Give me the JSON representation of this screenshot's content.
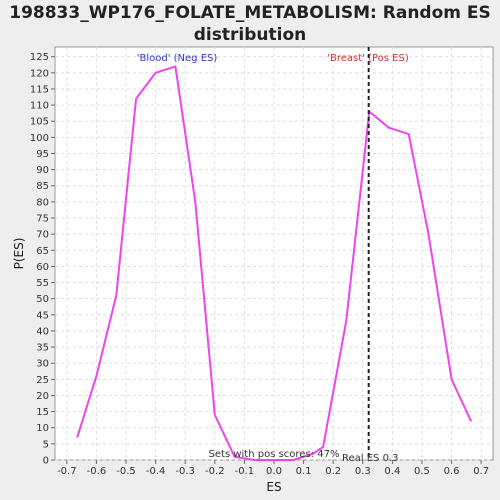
{
  "chart_data": {
    "type": "line",
    "title_line1": "198833_WP176_FOLATE_METABOLISM: Random ES",
    "title_line2": "distribution",
    "xlabel": "ES",
    "ylabel": "P(ES)",
    "xlim": [
      -0.74,
      0.74
    ],
    "ylim": [
      0,
      128
    ],
    "x_ticks": [
      -0.7,
      -0.6,
      -0.5,
      -0.4,
      -0.3,
      -0.2,
      -0.1,
      0.0,
      0.1,
      0.2,
      0.3,
      0.4,
      0.5,
      0.6,
      0.7
    ],
    "x_tick_labels": [
      "-0.7",
      "-0.6",
      "-0.5",
      "-0.4",
      "-0.3",
      "-0.2",
      "-0.1",
      "0.0",
      "0.1",
      "0.2",
      "0.3",
      "0.4",
      "0.5",
      "0.6",
      "0.7"
    ],
    "y_ticks": [
      0,
      5,
      10,
      15,
      20,
      25,
      30,
      35,
      40,
      45,
      50,
      55,
      60,
      65,
      70,
      75,
      80,
      85,
      90,
      95,
      100,
      105,
      110,
      115,
      120,
      125
    ],
    "grid": true,
    "series": [
      {
        "color": "#ee44ee",
        "x": [
          -0.665,
          -0.6,
          -0.533,
          -0.466,
          -0.4,
          -0.333,
          -0.266,
          -0.2,
          -0.133,
          -0.066,
          0.0,
          0.066,
          0.133,
          0.166,
          0.244,
          0.322,
          0.388,
          0.455,
          0.522,
          0.6,
          0.666
        ],
        "y": [
          7,
          26,
          51,
          112,
          120,
          122,
          80,
          14,
          1,
          0,
          0,
          0,
          2,
          4,
          43,
          108,
          103,
          101,
          70,
          25,
          12
        ]
      }
    ],
    "annotations": {
      "left_label": "'Blood' (Neg ES)",
      "right_label": "'Breast' (Pos ES)",
      "pos_scores": "Sets with pos scores: 47%",
      "real_es": "Real ES 0.3"
    },
    "real_es_value": 0.32,
    "colors": {
      "left_label": "#3333cc",
      "right_label": "#cc3333",
      "line": "#ee44ee",
      "real_es_line": "#222222"
    }
  }
}
